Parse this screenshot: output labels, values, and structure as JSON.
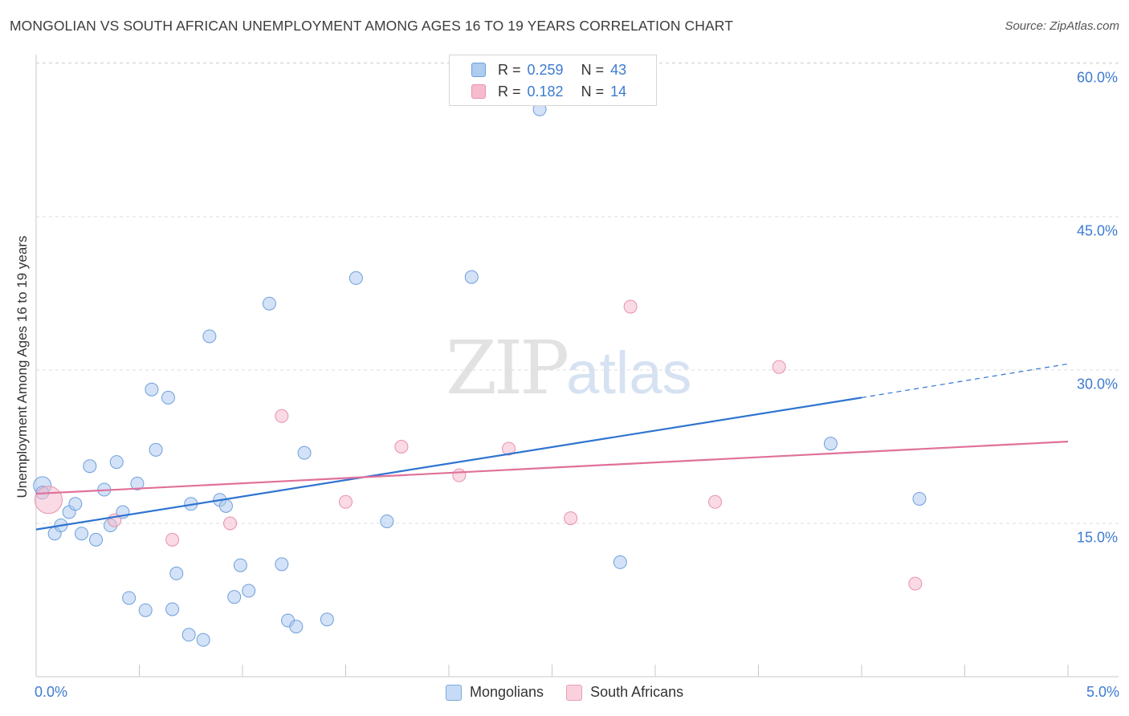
{
  "title": "MONGOLIAN VS SOUTH AFRICAN UNEMPLOYMENT AMONG AGES 16 TO 19 YEARS CORRELATION CHART",
  "source": "Source: ZipAtlas.com",
  "watermark": {
    "zip": "ZIP",
    "atlas": "atlas"
  },
  "legend": {
    "r_label": "R =",
    "n_label": "N =",
    "rows": [
      {
        "r": "0.259",
        "n": "43",
        "color": "#aecbf0"
      },
      {
        "r": "0.182",
        "n": "14",
        "color": "#f6bccd"
      }
    ]
  },
  "bottom_legend": [
    "Mongolians",
    "South Africans"
  ],
  "chart_data": {
    "type": "scatter",
    "title": "MONGOLIAN VS SOUTH AFRICAN UNEMPLOYMENT AMONG AGES 16 TO 19 YEARS CORRELATION CHART",
    "xlabel": "",
    "ylabel": "Unemployment Among Ages 16 to 19 years",
    "xlim": [
      0,
      5
    ],
    "ylim": [
      0,
      62
    ],
    "x_tick_labels": [
      "0.0%",
      "5.0%"
    ],
    "y_tick_labels": [
      "15.0%",
      "30.0%",
      "45.0%",
      "60.0%"
    ],
    "y_ticks": [
      15,
      30,
      45,
      60
    ],
    "grid": true,
    "legend_position": "top-center",
    "series": [
      {
        "name": "Mongolians",
        "color": "#aecbf0",
        "stroke": "#6f9fdc",
        "line_color": "#2f74d0",
        "trend": [
          [
            0,
            14.4
          ],
          [
            4.0,
            27.3
          ]
        ],
        "trend_extension": [
          [
            4.0,
            27.3
          ],
          [
            5.0,
            30.6
          ]
        ],
        "points": [
          [
            0.03,
            18.7
          ],
          [
            0.03,
            18.0
          ],
          [
            0.09,
            14.0
          ],
          [
            0.12,
            14.8
          ],
          [
            0.16,
            16.1
          ],
          [
            0.19,
            16.9
          ],
          [
            0.22,
            14.0
          ],
          [
            0.26,
            20.6
          ],
          [
            0.29,
            13.4
          ],
          [
            0.33,
            18.3
          ],
          [
            0.36,
            14.8
          ],
          [
            0.39,
            21.0
          ],
          [
            0.42,
            16.1
          ],
          [
            0.45,
            7.7
          ],
          [
            0.49,
            18.9
          ],
          [
            0.53,
            6.5
          ],
          [
            0.56,
            28.1
          ],
          [
            0.58,
            22.2
          ],
          [
            0.64,
            27.3
          ],
          [
            0.66,
            6.6
          ],
          [
            0.68,
            10.1
          ],
          [
            0.74,
            4.1
          ],
          [
            0.75,
            16.9
          ],
          [
            0.81,
            3.6
          ],
          [
            0.84,
            33.3
          ],
          [
            0.89,
            17.3
          ],
          [
            0.92,
            16.7
          ],
          [
            0.96,
            7.8
          ],
          [
            0.99,
            10.9
          ],
          [
            1.03,
            8.4
          ],
          [
            1.13,
            36.5
          ],
          [
            1.19,
            11.0
          ],
          [
            1.22,
            5.5
          ],
          [
            1.26,
            4.9
          ],
          [
            1.3,
            21.9
          ],
          [
            1.41,
            5.6
          ],
          [
            1.55,
            39.0
          ],
          [
            1.7,
            15.2
          ],
          [
            2.11,
            39.1
          ],
          [
            2.44,
            55.5
          ],
          [
            2.83,
            11.2
          ],
          [
            3.85,
            22.8
          ],
          [
            4.28,
            17.4
          ]
        ]
      },
      {
        "name": "South Africans",
        "color": "#f6bccd",
        "stroke": "#e891ab",
        "line_color": "#e0709a",
        "trend": [
          [
            0,
            17.9
          ],
          [
            5.0,
            23.0
          ]
        ],
        "points": [
          [
            0.06,
            17.3
          ],
          [
            0.38,
            15.3
          ],
          [
            0.66,
            13.4
          ],
          [
            0.94,
            15.0
          ],
          [
            1.19,
            25.5
          ],
          [
            1.5,
            17.1
          ],
          [
            1.77,
            22.5
          ],
          [
            2.05,
            19.7
          ],
          [
            2.29,
            22.3
          ],
          [
            2.59,
            15.5
          ],
          [
            2.88,
            36.2
          ],
          [
            3.29,
            17.1
          ],
          [
            3.6,
            30.3
          ],
          [
            4.26,
            9.1
          ]
        ]
      }
    ]
  }
}
